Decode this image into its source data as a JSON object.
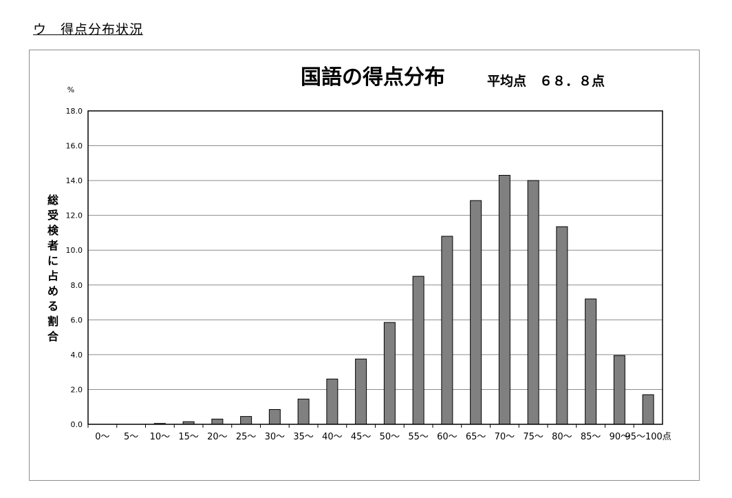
{
  "page": {
    "heading": "ウ　得点分布状況"
  },
  "chart_data": {
    "type": "bar",
    "title": "国語の得点分布",
    "average_label": "平均点　６８．８点",
    "y_unit": "%",
    "ylabel": "総受検者に占める割合",
    "ylim": [
      0,
      18
    ],
    "yticks": [
      "0.0",
      "2.0",
      "4.0",
      "6.0",
      "8.0",
      "10.0",
      "12.0",
      "14.0",
      "16.0",
      "18.0"
    ],
    "categories": [
      "0〜",
      "5〜",
      "10〜",
      "15〜",
      "20〜",
      "25〜",
      "30〜",
      "35〜",
      "40〜",
      "45〜",
      "50〜",
      "55〜",
      "60〜",
      "65〜",
      "70〜",
      "75〜",
      "80〜",
      "85〜",
      "90〜",
      "95〜100点"
    ],
    "values": [
      0.0,
      0.0,
      0.05,
      0.15,
      0.3,
      0.45,
      0.85,
      1.45,
      2.6,
      3.75,
      5.85,
      8.5,
      10.8,
      12.85,
      14.3,
      14.0,
      11.35,
      7.2,
      3.95,
      1.7
    ],
    "bar_color": "#808080",
    "grid": true,
    "legend": "none"
  }
}
